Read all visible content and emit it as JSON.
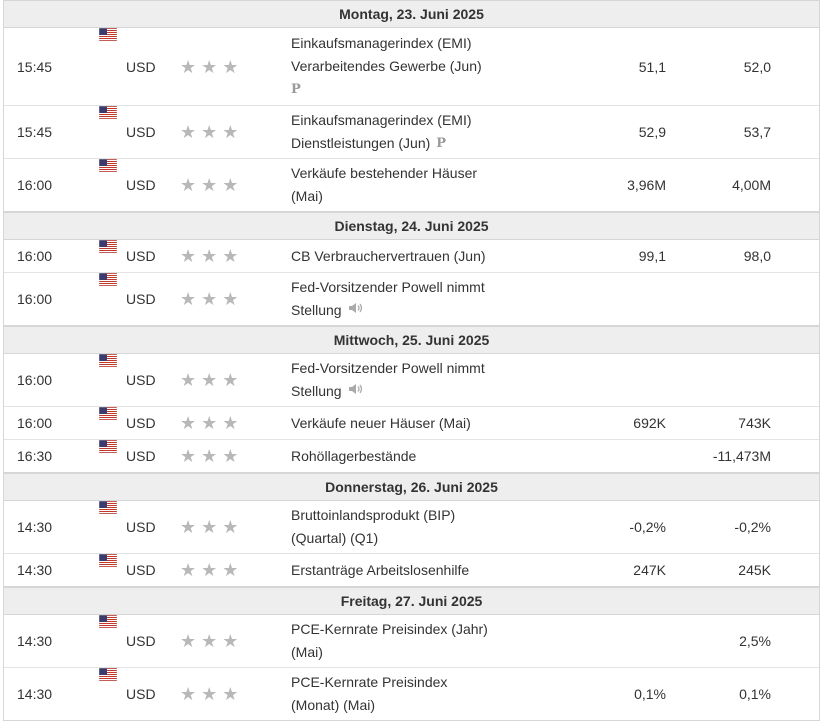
{
  "icons": {
    "flag": "us-flag-icon",
    "star": "star-icon",
    "preliminary": "preliminary-p-icon",
    "speech": "speaker-icon"
  },
  "colors": {
    "header_bg": "#eeeeee",
    "border": "#d6d6d6",
    "star": "#b8b8b8",
    "text": "#333333"
  },
  "days": [
    {
      "title": "Montag, 23. Juni 2025",
      "events": [
        {
          "time": "15:45",
          "currency": "USD",
          "event_lines": [
            "Einkaufsmanagerindex (EMI)",
            "Verarbeitendes Gewerbe (Jun)"
          ],
          "indicator": "P",
          "previous": "51,1",
          "forecast": "52,0"
        },
        {
          "time": "15:45",
          "currency": "USD",
          "event_lines": [
            "Einkaufsmanagerindex (EMI)",
            "Dienstleistungen (Jun)"
          ],
          "indicator": "P",
          "previous": "52,9",
          "forecast": "53,7"
        },
        {
          "time": "16:00",
          "currency": "USD",
          "event_lines": [
            "Verkäufe bestehender Häuser",
            "(Mai)"
          ],
          "previous": "3,96M",
          "forecast": "4,00M"
        }
      ]
    },
    {
      "title": "Dienstag, 24. Juni 2025",
      "events": [
        {
          "time": "16:00",
          "currency": "USD",
          "event_lines": [
            "CB Verbrauchervertrauen (Jun)"
          ],
          "previous": "99,1",
          "forecast": "98,0"
        },
        {
          "time": "16:00",
          "currency": "USD",
          "event_lines": [
            "Fed-Vorsitzender Powell nimmt",
            "Stellung"
          ],
          "indicator": "speech",
          "previous": "",
          "forecast": ""
        }
      ]
    },
    {
      "title": "Mittwoch, 25. Juni 2025",
      "events": [
        {
          "time": "16:00",
          "currency": "USD",
          "event_lines": [
            "Fed-Vorsitzender Powell nimmt",
            "Stellung"
          ],
          "indicator": "speech",
          "previous": "",
          "forecast": ""
        },
        {
          "time": "16:00",
          "currency": "USD",
          "event_lines": [
            "Verkäufe neuer Häuser (Mai)"
          ],
          "previous": "692K",
          "forecast": "743K"
        },
        {
          "time": "16:30",
          "currency": "USD",
          "event_lines": [
            "Rohöllagerbestände"
          ],
          "previous": "",
          "forecast": "-11,473M"
        }
      ]
    },
    {
      "title": "Donnerstag, 26. Juni 2025",
      "events": [
        {
          "time": "14:30",
          "currency": "USD",
          "event_lines": [
            "Bruttoinlandsprodukt (BIP)",
            "(Quartal) (Q1)"
          ],
          "previous": "-0,2%",
          "forecast": "-0,2%"
        },
        {
          "time": "14:30",
          "currency": "USD",
          "event_lines": [
            "Erstanträge Arbeitslosenhilfe"
          ],
          "previous": "247K",
          "forecast": "245K"
        }
      ]
    },
    {
      "title": "Freitag, 27. Juni 2025",
      "events": [
        {
          "time": "14:30",
          "currency": "USD",
          "event_lines": [
            "PCE-Kernrate Preisindex (Jahr)",
            "(Mai)"
          ],
          "previous": "",
          "forecast": "2,5%"
        },
        {
          "time": "14:30",
          "currency": "USD",
          "event_lines": [
            "PCE-Kernrate Preisindex",
            "(Monat) (Mai)"
          ],
          "previous": "0,1%",
          "forecast": "0,1%"
        }
      ]
    }
  ]
}
